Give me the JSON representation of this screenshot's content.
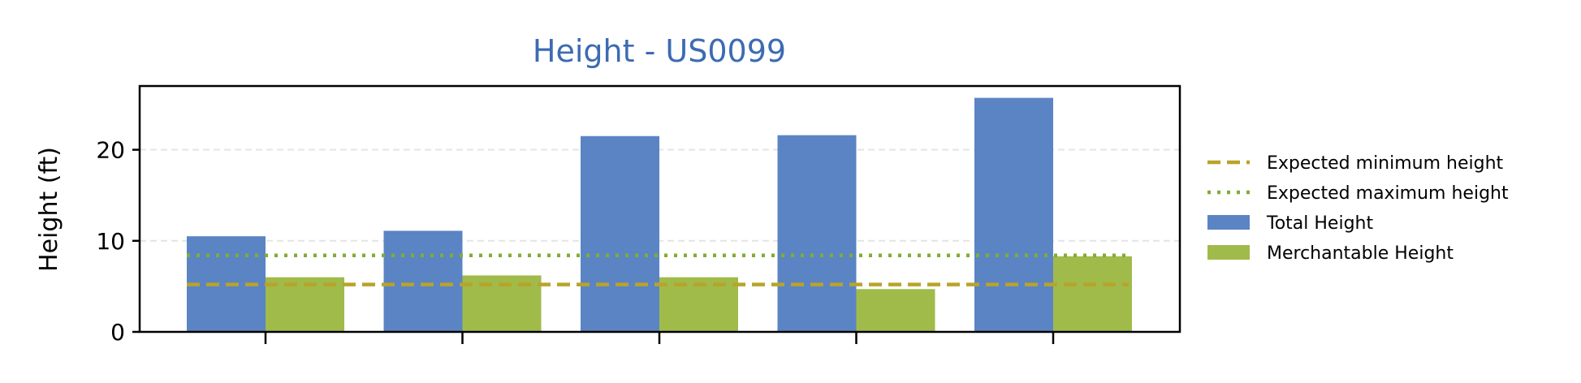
{
  "chart_data": {
    "type": "bar",
    "title": "Height - US0099",
    "title_color": "#3d6bb3",
    "ylabel": "Height (ft)",
    "xlabel": "",
    "ylim": [
      0,
      27
    ],
    "yticks": [
      0,
      10,
      20
    ],
    "grid": "y",
    "categories": [
      "",
      "",
      "",
      "",
      ""
    ],
    "series": [
      {
        "name": "Total Height",
        "color": "#5b84c4",
        "values": [
          10.5,
          11.1,
          21.5,
          21.6,
          25.7
        ]
      },
      {
        "name": "Merchantable Height",
        "color": "#a0bb4a",
        "values": [
          6.0,
          6.2,
          6.0,
          4.7,
          8.3
        ]
      }
    ],
    "reference_lines": [
      {
        "name": "Expected minimum height",
        "value": 5.2,
        "style": "dashed",
        "color": "#b8a42a"
      },
      {
        "name": "Expected maximum height",
        "value": 8.4,
        "style": "dotted",
        "color": "#7fae32"
      }
    ],
    "legend": {
      "placement": "right",
      "entries": [
        "Expected minimum height",
        "Expected maximum height",
        "Total Height",
        "Merchantable Height"
      ]
    }
  }
}
